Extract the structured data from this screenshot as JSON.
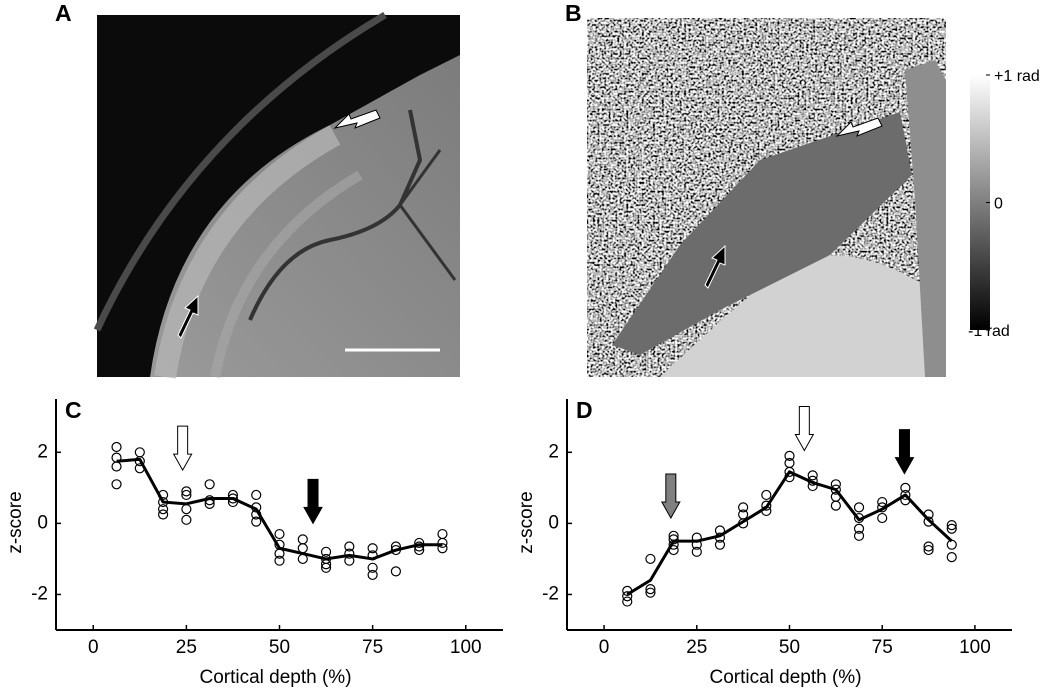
{
  "images": [
    {
      "label": "A"
    },
    {
      "label": "B",
      "colorbar": {
        "lim": [
          -1,
          1
        ],
        "ticks": [
          {
            "value": 1,
            "label": "+1 rad"
          },
          0,
          {
            "value": -1,
            "label": "-1 rad"
          }
        ]
      }
    }
  ],
  "chart_data": [
    {
      "type": "line",
      "label": "C",
      "xlabel": "Cortical depth (%)",
      "ylabel": "z-score",
      "xlim": [
        -10,
        110
      ],
      "ylim": [
        -3,
        3.5
      ],
      "xticks": [
        0,
        25,
        50,
        75,
        100
      ],
      "yticks": [
        -2,
        0,
        2
      ],
      "series": [
        {
          "type": "scatter",
          "color": "#000000",
          "x": [
            6.25,
            6.25,
            6.25,
            6.25,
            12.5,
            12.5,
            12.5,
            18.75,
            18.75,
            18.75,
            18.75,
            25,
            25,
            25,
            25,
            31.25,
            31.25,
            31.25,
            37.5,
            37.5,
            37.5,
            43.75,
            43.75,
            43.75,
            43.75,
            50,
            50,
            50,
            50,
            56.25,
            56.25,
            56.25,
            62.5,
            62.5,
            62.5,
            62.5,
            68.75,
            68.75,
            68.75,
            75,
            75,
            75,
            75,
            81.25,
            81.25,
            81.25,
            87.5,
            87.5,
            87.5,
            93.75,
            93.75,
            93.75
          ],
          "values": [
            2.15,
            1.85,
            1.6,
            1.1,
            2.0,
            1.75,
            1.55,
            0.8,
            0.6,
            0.4,
            0.25,
            0.9,
            0.8,
            0.4,
            0.1,
            1.1,
            0.65,
            0.55,
            0.8,
            0.7,
            0.6,
            0.8,
            0.45,
            0.25,
            0.05,
            -0.3,
            -0.6,
            -0.85,
            -1.05,
            -0.45,
            -0.7,
            -1.0,
            -0.8,
            -1.0,
            -1.15,
            -1.25,
            -0.65,
            -0.85,
            -1.05,
            -0.7,
            -0.9,
            -1.25,
            -1.45,
            -0.65,
            -0.75,
            -1.35,
            -0.55,
            -0.65,
            -0.75,
            -0.3,
            -0.55,
            -0.7
          ]
        },
        {
          "type": "line",
          "color": "#000000",
          "x": [
            6.25,
            12.5,
            18.75,
            25,
            31.25,
            37.5,
            43.75,
            50,
            56.25,
            62.5,
            68.75,
            75,
            81.25,
            87.5,
            93.75
          ],
          "values": [
            1.75,
            1.8,
            0.6,
            0.55,
            0.7,
            0.7,
            0.4,
            -0.7,
            -0.85,
            -1.0,
            -0.9,
            -1.0,
            -0.75,
            -0.6,
            -0.6
          ]
        }
      ],
      "arrows": [
        {
          "x": 24,
          "y": 1.5,
          "color": "#ffffff"
        },
        {
          "x": 59,
          "y": 0,
          "color": "#000000"
        }
      ]
    },
    {
      "type": "line",
      "label": "D",
      "xlabel": "Cortical depth (%)",
      "ylabel": "z-score",
      "xlim": [
        -10,
        110
      ],
      "ylim": [
        -3,
        3.5
      ],
      "xticks": [
        0,
        25,
        50,
        75,
        100
      ],
      "yticks": [
        -2,
        0,
        2
      ],
      "series": [
        {
          "type": "scatter",
          "color": "#000000",
          "x": [
            6.25,
            6.25,
            6.25,
            12.5,
            12.5,
            12.5,
            18.75,
            18.75,
            18.75,
            18.75,
            25,
            25,
            25,
            31.25,
            31.25,
            31.25,
            37.5,
            37.5,
            37.5,
            43.75,
            43.75,
            43.75,
            50,
            50,
            50,
            50,
            56.25,
            56.25,
            56.25,
            62.5,
            62.5,
            62.5,
            62.5,
            68.75,
            68.75,
            68.75,
            68.75,
            75,
            75,
            75,
            81.25,
            81.25,
            81.25,
            87.5,
            87.5,
            87.5,
            87.5,
            93.75,
            93.75,
            93.75,
            93.75
          ],
          "values": [
            -1.9,
            -2.05,
            -2.2,
            -1.0,
            -1.85,
            -1.95,
            -0.35,
            -0.45,
            -0.6,
            -0.75,
            -0.4,
            -0.6,
            -0.8,
            -0.2,
            -0.4,
            -0.6,
            0.45,
            0.25,
            0.0,
            0.8,
            0.5,
            0.35,
            1.9,
            1.7,
            1.45,
            1.3,
            1.35,
            1.2,
            1.05,
            1.1,
            0.95,
            0.75,
            0.5,
            0.45,
            0.15,
            -0.15,
            -0.35,
            0.6,
            0.45,
            0.15,
            1.0,
            0.8,
            0.65,
            0.25,
            0.05,
            -0.65,
            -0.75,
            -0.05,
            -0.15,
            -0.6,
            -0.95
          ]
        },
        {
          "type": "line",
          "color": "#000000",
          "x": [
            6.25,
            12.5,
            18.75,
            25,
            31.25,
            37.5,
            43.75,
            50,
            56.25,
            62.5,
            68.75,
            75,
            81.25,
            87.5,
            93.75
          ],
          "values": [
            -2.0,
            -1.6,
            -0.5,
            -0.5,
            -0.35,
            0.05,
            0.45,
            1.45,
            1.15,
            0.95,
            0.1,
            0.4,
            0.8,
            0.1,
            -0.5
          ]
        }
      ],
      "arrows": [
        {
          "x": 18,
          "y": 0.15,
          "color": "#808080"
        },
        {
          "x": 54,
          "y": 2.05,
          "color": "#ffffff"
        },
        {
          "x": 81,
          "y": 1.4,
          "color": "#000000"
        }
      ]
    }
  ]
}
